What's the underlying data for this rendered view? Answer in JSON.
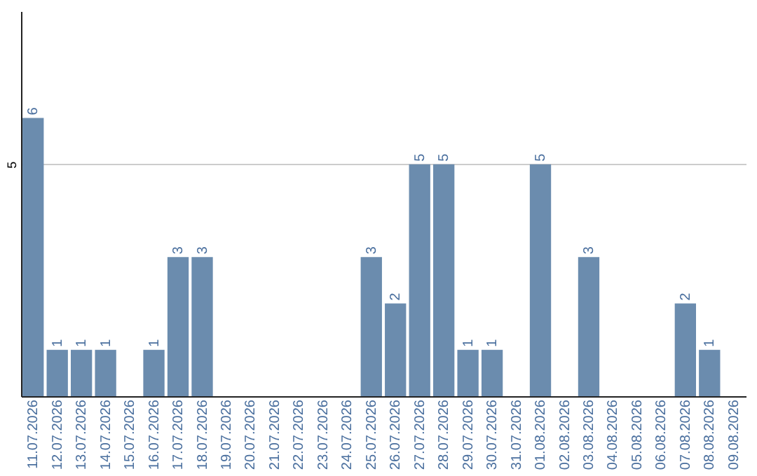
{
  "chart_data": {
    "type": "bar",
    "categories": [
      "11.07.2026",
      "12.07.2026",
      "13.07.2026",
      "14.07.2026",
      "15.07.2026",
      "16.07.2026",
      "17.07.2026",
      "18.07.2026",
      "19.07.2026",
      "20.07.2026",
      "21.07.2026",
      "22.07.2026",
      "23.07.2026",
      "24.07.2026",
      "25.07.2026",
      "26.07.2026",
      "27.07.2026",
      "28.07.2026",
      "29.07.2026",
      "30.07.2026",
      "31.07.2026",
      "01.08.2026",
      "02.08.2026",
      "03.08.2026",
      "04.08.2026",
      "05.08.2026",
      "06.08.2026",
      "07.08.2026",
      "08.08.2026",
      "09.08.2026"
    ],
    "values": [
      6,
      1,
      1,
      1,
      null,
      1,
      3,
      3,
      null,
      null,
      null,
      null,
      null,
      null,
      3,
      2,
      5,
      5,
      1,
      1,
      null,
      5,
      null,
      3,
      null,
      null,
      null,
      2,
      1,
      null
    ],
    "color": "#6b8cae",
    "ylim": [
      0,
      8.3
    ],
    "yticks": [
      5
    ],
    "grid": "y",
    "data_labels": true
  }
}
